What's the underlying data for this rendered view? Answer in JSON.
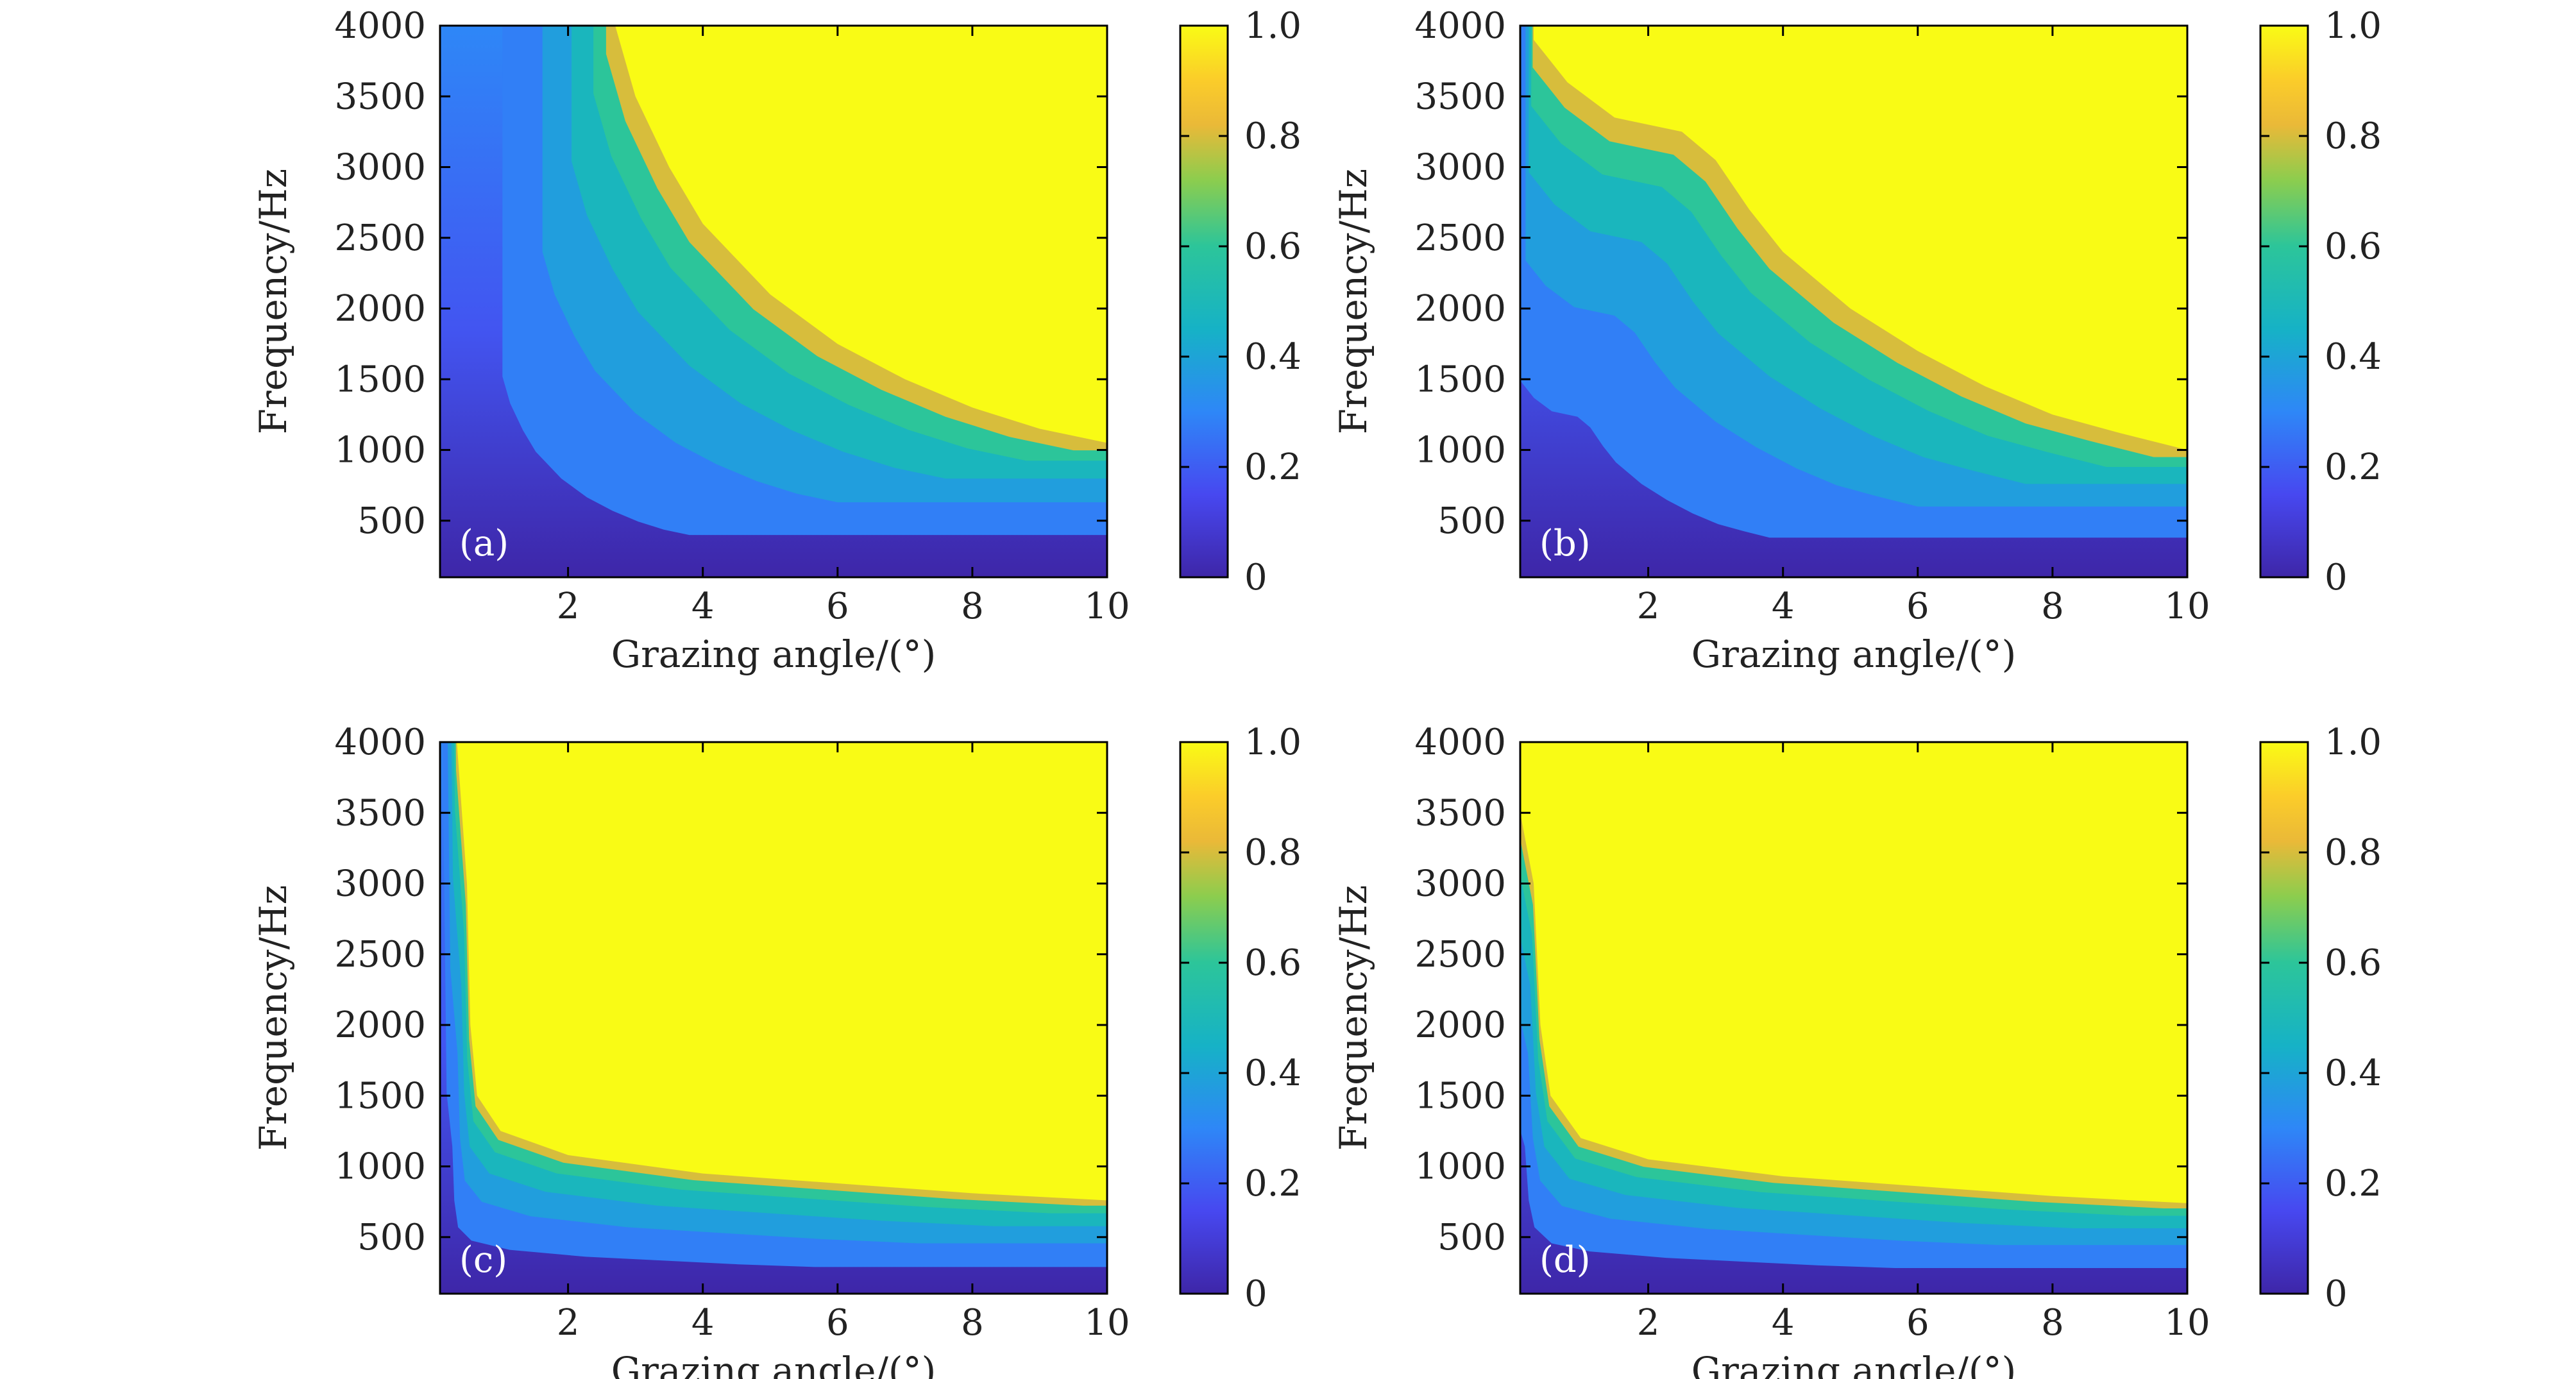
{
  "figure": {
    "panels": [
      {
        "label": "(a)",
        "xlabel": "Grazing angle/(°)",
        "ylabel": "Frequency/Hz"
      },
      {
        "label": "(b)",
        "xlabel": "Grazing angle/(°)",
        "ylabel": "Frequency/Hz"
      },
      {
        "label": "(c)",
        "xlabel": "Grazing angle/(°)",
        "ylabel": "Frequency/Hz"
      },
      {
        "label": "(d)",
        "xlabel": "Grazing angle/(°)",
        "ylabel": "Frequency/Hz"
      }
    ]
  },
  "chart_data": [
    {
      "type": "heatmap",
      "panel_label": "(a)",
      "xlabel": "Grazing angle/(°)",
      "ylabel": "Frequency/Hz",
      "xlim": [
        0.1,
        10
      ],
      "ylim": [
        100,
        4000
      ],
      "x_ticks": [
        2,
        4,
        6,
        8,
        10
      ],
      "y_ticks": [
        500,
        1000,
        1500,
        2000,
        2500,
        3000,
        3500,
        4000
      ],
      "colorbar": {
        "range": [
          0,
          1.0
        ],
        "ticks": [
          "0",
          "0.2",
          "0.4",
          "0.6",
          "0.8",
          "1.0"
        ],
        "colormap": "parula"
      },
      "transition_contour_value_0_9": [
        {
          "x": 2.7,
          "y": 4000
        },
        {
          "x": 3.0,
          "y": 3500
        },
        {
          "x": 3.5,
          "y": 3000
        },
        {
          "x": 4.0,
          "y": 2600
        },
        {
          "x": 5.0,
          "y": 2100
        },
        {
          "x": 6.0,
          "y": 1750
        },
        {
          "x": 7.0,
          "y": 1500
        },
        {
          "x": 8.0,
          "y": 1300
        },
        {
          "x": 9.0,
          "y": 1150
        },
        {
          "x": 10.0,
          "y": 1050
        }
      ]
    },
    {
      "type": "heatmap",
      "panel_label": "(b)",
      "xlabel": "Grazing angle/(°)",
      "ylabel": "Frequency/Hz",
      "xlim": [
        0.1,
        10
      ],
      "ylim": [
        100,
        4000
      ],
      "x_ticks": [
        2,
        4,
        6,
        8,
        10
      ],
      "y_ticks": [
        500,
        1000,
        1500,
        2000,
        2500,
        3000,
        3500,
        4000
      ],
      "colorbar": {
        "range": [
          0,
          1.0
        ],
        "ticks": [
          "0",
          "0.2",
          "0.4",
          "0.6",
          "0.8",
          "1.0"
        ],
        "colormap": "parula"
      },
      "transition_contour_value_0_9": [
        {
          "x": 0.3,
          "y": 3900
        },
        {
          "x": 0.8,
          "y": 3600
        },
        {
          "x": 1.5,
          "y": 3350
        },
        {
          "x": 2.5,
          "y": 3250
        },
        {
          "x": 3.0,
          "y": 3050
        },
        {
          "x": 3.5,
          "y": 2700
        },
        {
          "x": 4.0,
          "y": 2400
        },
        {
          "x": 5.0,
          "y": 2000
        },
        {
          "x": 6.0,
          "y": 1700
        },
        {
          "x": 7.0,
          "y": 1450
        },
        {
          "x": 8.0,
          "y": 1250
        },
        {
          "x": 9.0,
          "y": 1120
        },
        {
          "x": 10.0,
          "y": 1000
        }
      ]
    },
    {
      "type": "heatmap",
      "panel_label": "(c)",
      "xlabel": "Grazing angle/(°)",
      "ylabel": "Frequency/Hz",
      "xlim": [
        0.1,
        10
      ],
      "ylim": [
        100,
        4000
      ],
      "x_ticks": [
        2,
        4,
        6,
        8,
        10
      ],
      "y_ticks": [
        500,
        1000,
        1500,
        2000,
        2500,
        3000,
        3500,
        4000
      ],
      "colorbar": {
        "range": [
          0,
          1.0
        ],
        "ticks": [
          "0",
          "0.2",
          "0.4",
          "0.6",
          "0.8",
          "1.0"
        ],
        "colormap": "parula"
      },
      "transition_contour_value_0_9": [
        {
          "x": 0.35,
          "y": 4000
        },
        {
          "x": 0.5,
          "y": 3000
        },
        {
          "x": 0.55,
          "y": 2000
        },
        {
          "x": 0.65,
          "y": 1500
        },
        {
          "x": 1.0,
          "y": 1250
        },
        {
          "x": 2.0,
          "y": 1080
        },
        {
          "x": 4.0,
          "y": 950
        },
        {
          "x": 6.0,
          "y": 880
        },
        {
          "x": 8.0,
          "y": 810
        },
        {
          "x": 10.0,
          "y": 760
        }
      ]
    },
    {
      "type": "heatmap",
      "panel_label": "(d)",
      "xlabel": "Grazing angle/(°)",
      "ylabel": "Frequency/Hz",
      "xlim": [
        0.1,
        10
      ],
      "ylim": [
        100,
        4000
      ],
      "x_ticks": [
        2,
        4,
        6,
        8,
        10
      ],
      "y_ticks": [
        500,
        1000,
        1500,
        2000,
        2500,
        3000,
        3500,
        4000
      ],
      "colorbar": {
        "range": [
          0,
          1.0
        ],
        "ticks": [
          "0",
          "0.2",
          "0.4",
          "0.6",
          "0.8",
          "1.0"
        ],
        "colormap": "parula"
      },
      "transition_contour_value_0_9": [
        {
          "x": 0.1,
          "y": 3500
        },
        {
          "x": 0.3,
          "y": 3000
        },
        {
          "x": 0.4,
          "y": 2000
        },
        {
          "x": 0.55,
          "y": 1500
        },
        {
          "x": 1.0,
          "y": 1200
        },
        {
          "x": 2.0,
          "y": 1050
        },
        {
          "x": 4.0,
          "y": 930
        },
        {
          "x": 6.0,
          "y": 860
        },
        {
          "x": 8.0,
          "y": 790
        },
        {
          "x": 10.0,
          "y": 740
        }
      ]
    }
  ]
}
